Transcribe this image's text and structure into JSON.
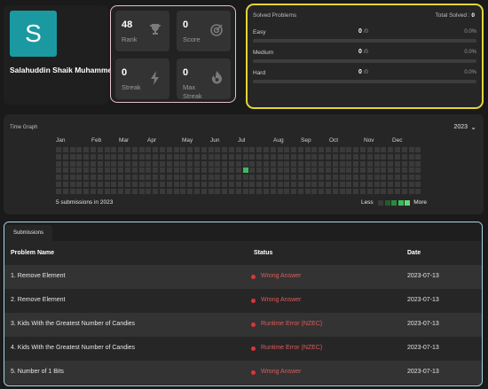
{
  "profile": {
    "avatar_letter": "S",
    "username": "Salahuddin Shaik Muhammed"
  },
  "stats": [
    {
      "value": "48",
      "label": "Rank",
      "icon": "trophy-icon"
    },
    {
      "value": "0",
      "label": "Score",
      "icon": "target-icon"
    },
    {
      "value": "0",
      "label": "Streak",
      "icon": "lightning-icon"
    },
    {
      "value": "0",
      "label": "Max Streak",
      "icon": "flame-icon"
    }
  ],
  "solved": {
    "title": "Solved Problems",
    "total_label": "Total Solved :",
    "total_value": "0",
    "difficulties": [
      {
        "name": "Easy",
        "count": "0",
        "total": "/0",
        "percent": "0.0%"
      },
      {
        "name": "Medium",
        "count": "0",
        "total": "/0",
        "percent": "0.0%"
      },
      {
        "name": "Hard",
        "count": "0",
        "total": "/0",
        "percent": "0.0%"
      }
    ]
  },
  "time_graph": {
    "title": "Time Graph",
    "year": "2023",
    "months": [
      "Jan",
      "Feb",
      "Mar",
      "Apr",
      "May",
      "Jun",
      "Jul",
      "Aug",
      "Sep",
      "Oct",
      "Nov",
      "Dec"
    ],
    "count_text": "5 submissions in 2023",
    "legend_less": "Less",
    "legend_more": "More",
    "legend_colors": [
      "#3a3a3a",
      "#1f5e2c",
      "#2b8a40",
      "#3fb95b",
      "#5fd87a"
    ],
    "active_color": "#3fb95b"
  },
  "submissions": {
    "tab_label": "Submissions",
    "headers": {
      "name": "Problem Name",
      "status": "Status",
      "date": "Date"
    },
    "rows": [
      {
        "name": "1.   Remove Element",
        "status": "Wrong Answer",
        "date": "2023-07-13"
      },
      {
        "name": "2.   Remove Element",
        "status": "Wrong Answer",
        "date": "2023-07-13"
      },
      {
        "name": "3.   Kids With the Greatest Number of Candies",
        "status": "Runtime Error (NZEC)",
        "date": "2023-07-13"
      },
      {
        "name": "4.   Kids With the Greatest Number of Candies",
        "status": "Runtime Error (NZEC)",
        "date": "2023-07-13"
      },
      {
        "name": "5.   Number of 1 Bits",
        "status": "Wrong Answer",
        "date": "2023-07-13"
      }
    ]
  }
}
